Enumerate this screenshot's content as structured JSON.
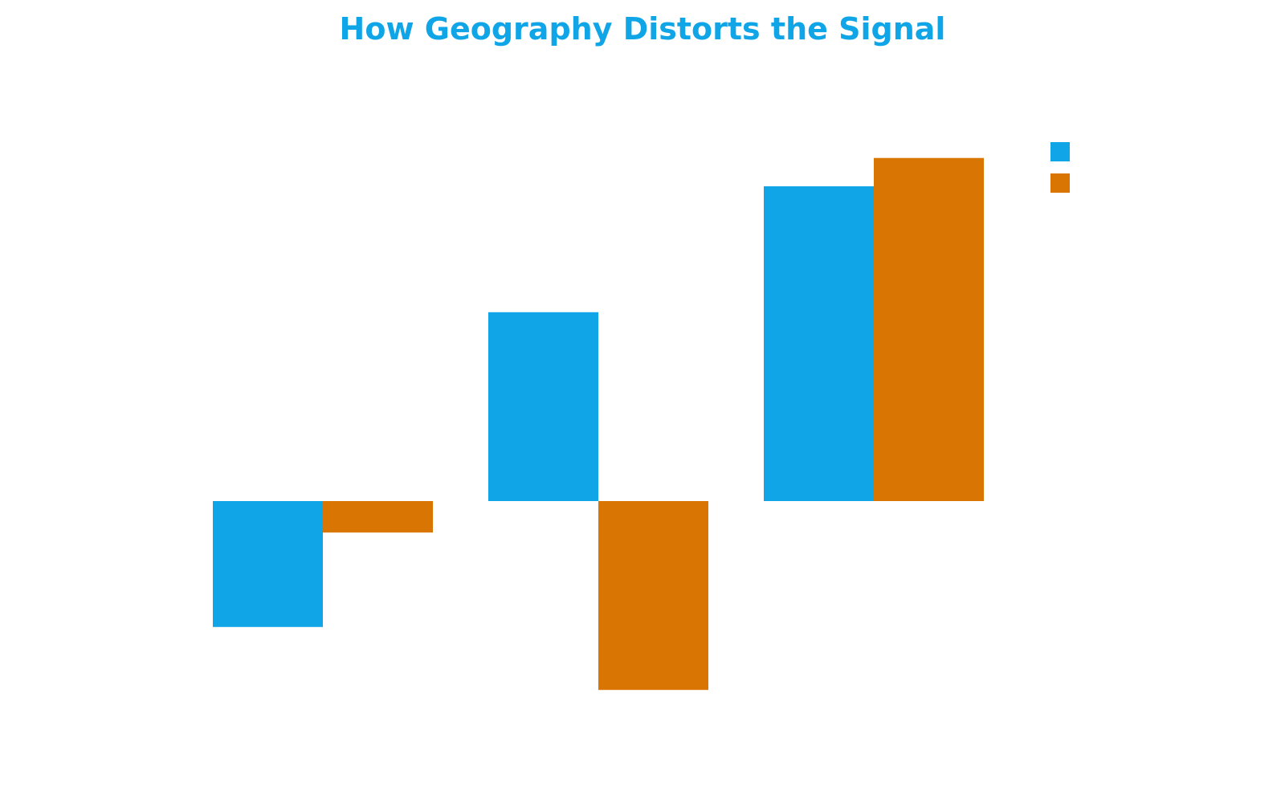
{
  "chart_data": {
    "type": "bar",
    "title": "How Geography Distorts the Signal",
    "categories": [
      "",
      "",
      ""
    ],
    "series": [
      {
        "color": "#10a5e7",
        "values": [
          -2.0,
          3.0,
          5.0
        ]
      },
      {
        "color": "#d97503",
        "values": [
          -0.5,
          -3.0,
          5.45
        ]
      }
    ],
    "ylim": [
      -3.5,
      6.5
    ],
    "xlabel": "",
    "ylabel": "",
    "grid": false,
    "legend": "top-right",
    "title_color": "#10a5e7"
  }
}
